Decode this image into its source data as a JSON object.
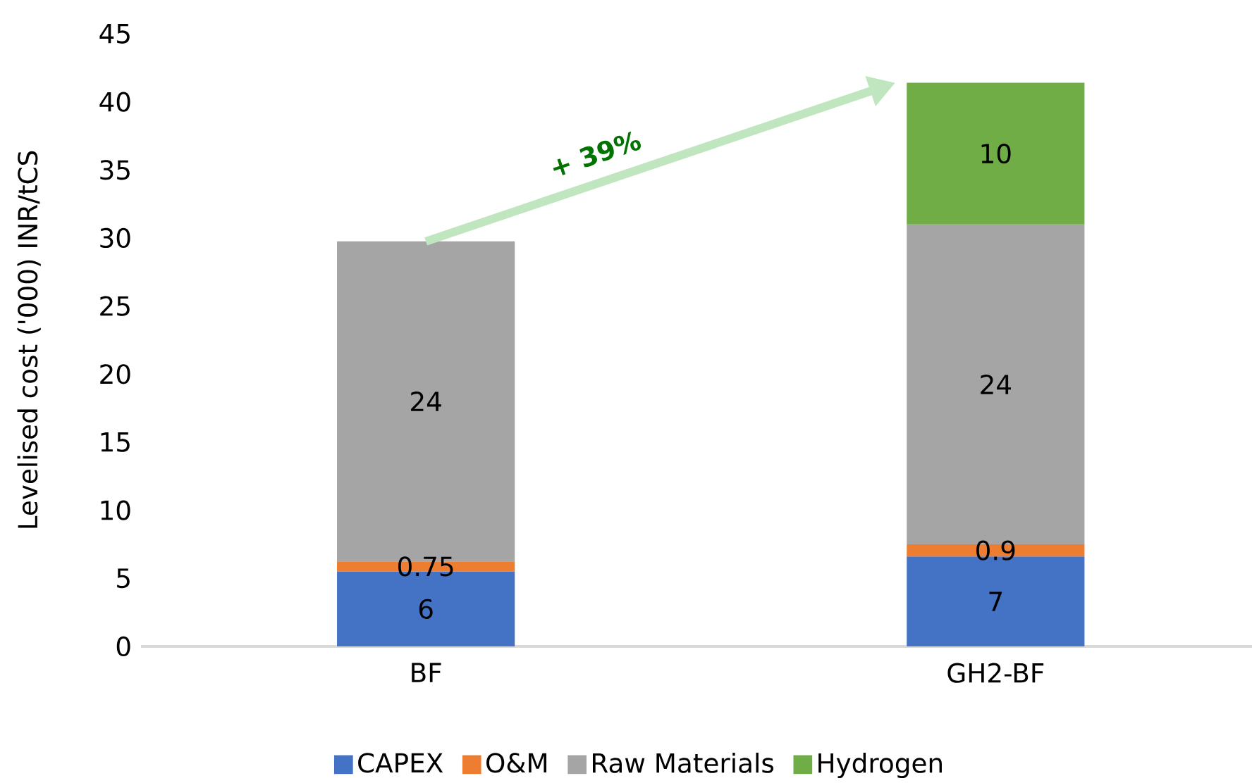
{
  "chart_data": {
    "type": "bar",
    "stacked": true,
    "ylabel": "Levelised cost ('000) INR/tCS",
    "categories": [
      "BF",
      "GH2-BF"
    ],
    "ylim": [
      0,
      45
    ],
    "yticks": [
      0,
      5,
      10,
      15,
      20,
      25,
      30,
      35,
      40,
      45
    ],
    "legend": "bottom",
    "annotations": [
      "+ 39%"
    ],
    "series": [
      {
        "name": "CAPEX",
        "color": "#4472c4",
        "values": [
          5.5,
          6.6
        ],
        "value_labels": [
          "6",
          "7"
        ]
      },
      {
        "name": "O&M",
        "color": "#ed7d31",
        "values": [
          0.75,
          0.9
        ],
        "value_labels": [
          "0.75",
          "0.9"
        ]
      },
      {
        "name": "Raw Materials",
        "color": "#a5a5a5",
        "values": [
          23.5,
          23.5
        ],
        "value_labels": [
          "24",
          "24"
        ]
      },
      {
        "name": "Hydrogen",
        "color": "#70ad47",
        "values": [
          null,
          10.4
        ],
        "value_labels": [
          null,
          "10"
        ]
      }
    ]
  }
}
